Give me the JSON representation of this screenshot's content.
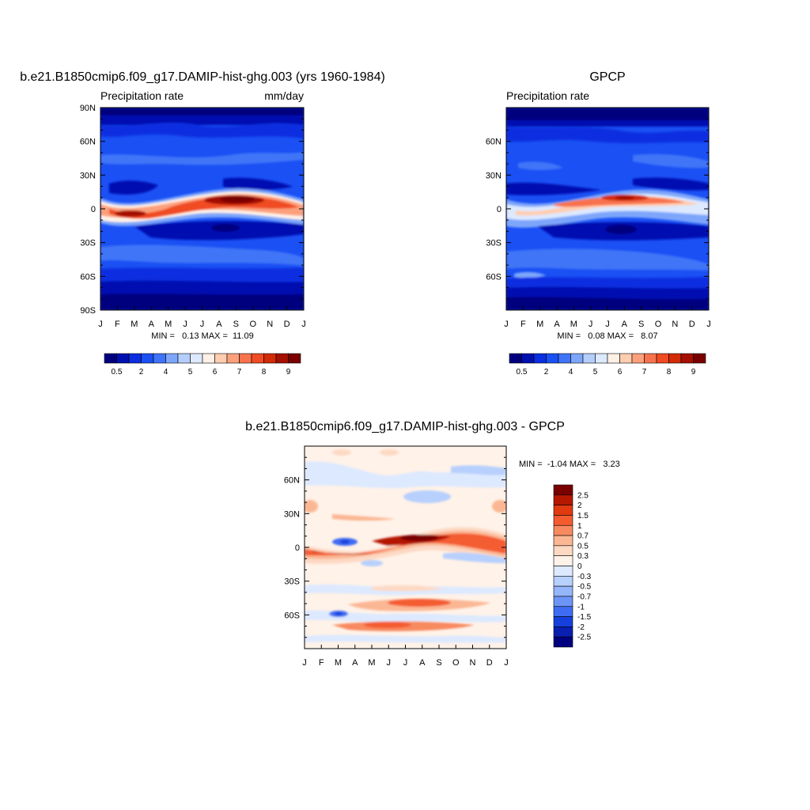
{
  "chart_data": [
    {
      "type": "heatmap",
      "title": "b.e21.B1850cmip6.f09_g17.DAMIP-hist-ghg.003 (yrs 1960-1984)",
      "subtitle_left": "Precipitation rate",
      "subtitle_right": "mm/day",
      "x_ticks": [
        "J",
        "F",
        "M",
        "A",
        "M",
        "J",
        "J",
        "A",
        "S",
        "O",
        "N",
        "D",
        "J"
      ],
      "y_ticks": [
        "90N",
        "60N",
        "30N",
        "0",
        "30S",
        "60S",
        "90S"
      ],
      "y_tick_values": [
        90,
        60,
        30,
        0,
        -30,
        -60,
        -90
      ],
      "ylim": [
        -90,
        90
      ],
      "stats_text": "MIN =   0.13 MAX =  11.09",
      "min": 0.13,
      "max": 11.09,
      "colorbar": {
        "orientation": "horizontal",
        "levels": [
          "0.5",
          "2",
          "4",
          "5",
          "6",
          "7",
          "8",
          "9"
        ],
        "colors": [
          "#00007f",
          "#0010b0",
          "#0a2ee0",
          "#1a50f4",
          "#3f74f8",
          "#7da6fb",
          "#b3cefd",
          "#dde9ff",
          "#fff1e6",
          "#ffcdb0",
          "#fca07c",
          "#f8734d",
          "#f04b22",
          "#d42a08",
          "#a51000",
          "#7a0000"
        ]
      }
    },
    {
      "type": "heatmap",
      "title": "GPCP",
      "subtitle_left": "Precipitation rate",
      "x_ticks": [
        "J",
        "F",
        "M",
        "A",
        "M",
        "J",
        "J",
        "A",
        "S",
        "O",
        "N",
        "D",
        "J"
      ],
      "y_ticks": [
        "60N",
        "30N",
        "0",
        "30S",
        "60S"
      ],
      "y_tick_values": [
        60,
        30,
        0,
        -30,
        -60
      ],
      "ylim": [
        -90,
        90
      ],
      "stats_text": "MIN =   0.08 MAX =   8.07",
      "min": 0.08,
      "max": 8.07,
      "colorbar": {
        "orientation": "horizontal",
        "levels": [
          "0.5",
          "2",
          "4",
          "5",
          "6",
          "7",
          "8",
          "9"
        ],
        "colors": [
          "#00007f",
          "#0010b0",
          "#0a2ee0",
          "#1a50f4",
          "#3f74f8",
          "#7da6fb",
          "#b3cefd",
          "#dde9ff",
          "#fff1e6",
          "#ffcdb0",
          "#fca07c",
          "#f8734d",
          "#f04b22",
          "#d42a08",
          "#a51000",
          "#7a0000"
        ]
      }
    },
    {
      "type": "heatmap",
      "title": "b.e21.B1850cmip6.f09_g17.DAMIP-hist-ghg.003 - GPCP",
      "x_ticks": [
        "J",
        "F",
        "M",
        "A",
        "M",
        "J",
        "J",
        "A",
        "S",
        "O",
        "N",
        "D",
        "J"
      ],
      "y_ticks": [
        "60N",
        "30N",
        "0",
        "30S",
        "60S"
      ],
      "y_tick_values": [
        60,
        30,
        0,
        -30,
        -60
      ],
      "ylim": [
        -90,
        90
      ],
      "stats_text": "MIN =  -1.04 MAX =   3.23",
      "min": -1.04,
      "max": 3.23,
      "colorbar": {
        "orientation": "vertical",
        "levels": [
          "2.5",
          "2",
          "1.5",
          "1",
          "0.7",
          "0.5",
          "0.3",
          "0",
          "-0.3",
          "-0.5",
          "-0.7",
          "-1",
          "-1.5",
          "-2",
          "-2.5"
        ],
        "colors": [
          "#7a0000",
          "#b51800",
          "#e03a10",
          "#f45c30",
          "#f88a60",
          "#fbb794",
          "#fdd9c4",
          "#fff2e8",
          "#dde9ff",
          "#b7d0fd",
          "#94b6fb",
          "#6d95f8",
          "#3f6cf3",
          "#1640dc",
          "#0a1fb0",
          "#00007f"
        ]
      }
    }
  ]
}
